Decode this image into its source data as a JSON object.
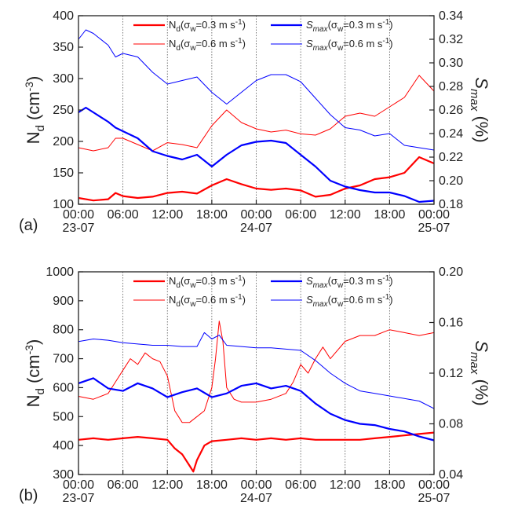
{
  "chart_data": [
    {
      "type": "line",
      "panel_label": "(a)",
      "ylabel_left": "N_d (cm^-3)",
      "ylabel_right": "S_max (%)",
      "ylim_left": [
        100,
        400
      ],
      "ylim_right": [
        0.18,
        0.34
      ],
      "yticks_left": [
        100,
        150,
        200,
        250,
        300,
        350,
        400
      ],
      "yticks_right": [
        0.18,
        0.2,
        0.22,
        0.24,
        0.26,
        0.28,
        0.3,
        0.32,
        0.34
      ],
      "xlim_hours": [
        0,
        48
      ],
      "xticks": [
        {
          "label": "00:00",
          "date": "23-07"
        },
        {
          "label": "06:00",
          "date": ""
        },
        {
          "label": "12:00",
          "date": ""
        },
        {
          "label": "18:00",
          "date": ""
        },
        {
          "label": "00:00",
          "date": "24-07"
        },
        {
          "label": "06:00",
          "date": ""
        },
        {
          "label": "12:00",
          "date": ""
        },
        {
          "label": "18:00",
          "date": ""
        },
        {
          "label": "00:00",
          "date": "25-07"
        }
      ],
      "grid": "vertical",
      "legend": "top",
      "series": [
        {
          "name": "N_d (σw=0.3 m s-1)",
          "axis": "left",
          "color": "#ff0000",
          "width": 2.2,
          "x": [
            0,
            2,
            4,
            5,
            6,
            8,
            10,
            12,
            14,
            16,
            18,
            20,
            22,
            24,
            26,
            28,
            30,
            32,
            34,
            36,
            38,
            40,
            42,
            44,
            46,
            48
          ],
          "y": [
            110,
            106,
            108,
            118,
            113,
            110,
            112,
            118,
            120,
            117,
            130,
            140,
            132,
            125,
            123,
            125,
            122,
            112,
            115,
            125,
            130,
            140,
            143,
            150,
            175,
            165
          ]
        },
        {
          "name": "N_d (σw=0.6 m s-1)",
          "axis": "left",
          "color": "#ff0000",
          "width": 1,
          "x": [
            0,
            2,
            4,
            5,
            6,
            8,
            10,
            12,
            14,
            16,
            18,
            20,
            22,
            24,
            26,
            28,
            30,
            32,
            34,
            36,
            38,
            40,
            42,
            44,
            46,
            48
          ],
          "y": [
            190,
            185,
            190,
            205,
            205,
            195,
            185,
            198,
            195,
            190,
            225,
            250,
            230,
            220,
            215,
            218,
            212,
            210,
            220,
            240,
            245,
            240,
            255,
            270,
            305,
            280
          ]
        },
        {
          "name": "S_max (σw=0.3 m s-1)",
          "axis": "right",
          "color": "#0000ff",
          "width": 2.2,
          "x": [
            0,
            1,
            2,
            4,
            5,
            6,
            8,
            10,
            12,
            14,
            16,
            18,
            20,
            22,
            24,
            26,
            28,
            30,
            32,
            34,
            36,
            38,
            40,
            42,
            44,
            46,
            48
          ],
          "y": [
            0.258,
            0.262,
            0.258,
            0.25,
            0.245,
            0.242,
            0.236,
            0.225,
            0.221,
            0.218,
            0.222,
            0.212,
            0.222,
            0.23,
            0.233,
            0.234,
            0.232,
            0.222,
            0.212,
            0.2,
            0.195,
            0.192,
            0.19,
            0.19,
            0.187,
            0.182,
            0.183
          ]
        },
        {
          "name": "S_max (σw=0.6 m s-1)",
          "axis": "right",
          "color": "#0000ff",
          "width": 1,
          "x": [
            0,
            1,
            2,
            4,
            5,
            6,
            8,
            10,
            12,
            14,
            16,
            18,
            20,
            22,
            24,
            26,
            28,
            30,
            32,
            34,
            36,
            38,
            40,
            42,
            44,
            46,
            48
          ],
          "y": [
            0.32,
            0.328,
            0.325,
            0.315,
            0.305,
            0.308,
            0.305,
            0.292,
            0.282,
            0.285,
            0.288,
            0.275,
            0.265,
            0.275,
            0.285,
            0.29,
            0.29,
            0.284,
            0.27,
            0.256,
            0.245,
            0.243,
            0.238,
            0.24,
            0.23,
            0.228,
            0.226
          ]
        }
      ],
      "legend_entries": [
        {
          "prefix": "N",
          "sub": "d",
          "sigma": "(σ",
          "sigmasub": "w",
          "rest": "=0.3 m s",
          "sup": "-1",
          "close": ")",
          "series": 0
        },
        {
          "prefix": "S",
          "sub": "max",
          "sigma": "(σ",
          "sigmasub": "w",
          "rest": "=0.3 m s",
          "sup": "-1",
          "close": ")",
          "series": 2
        },
        {
          "prefix": "N",
          "sub": "d",
          "sigma": "(σ",
          "sigmasub": "w",
          "rest": "=0.6 m s",
          "sup": "-1",
          "close": ")",
          "series": 1
        },
        {
          "prefix": "S",
          "sub": "max",
          "sigma": "(σ",
          "sigmasub": "w",
          "rest": "=0.6 m s",
          "sup": "-1",
          "close": ")",
          "series": 3
        }
      ]
    },
    {
      "type": "line",
      "panel_label": "(b)",
      "ylabel_left": "N_d (cm^-3)",
      "ylabel_right": "S_max (%)",
      "ylim_left": [
        300,
        1000
      ],
      "ylim_right": [
        0.04,
        0.2
      ],
      "yticks_left": [
        300,
        400,
        500,
        600,
        700,
        800,
        900,
        1000
      ],
      "yticks_right": [
        0.04,
        0.08,
        0.12,
        0.16,
        0.2
      ],
      "xlim_hours": [
        0,
        48
      ],
      "xticks": [
        {
          "label": "00:00",
          "date": "23-07"
        },
        {
          "label": "06:00",
          "date": ""
        },
        {
          "label": "12:00",
          "date": ""
        },
        {
          "label": "18:00",
          "date": ""
        },
        {
          "label": "00:00",
          "date": "24-07"
        },
        {
          "label": "06:00",
          "date": ""
        },
        {
          "label": "12:00",
          "date": ""
        },
        {
          "label": "18:00",
          "date": ""
        },
        {
          "label": "00:00",
          "date": "25-07"
        }
      ],
      "grid": "vertical",
      "legend": "top",
      "series": [
        {
          "name": "N_d (σw=0.3 m s-1)",
          "axis": "left",
          "color": "#ff0000",
          "width": 2.2,
          "x": [
            0,
            2,
            4,
            6,
            8,
            10,
            12,
            13,
            14,
            15,
            15.5,
            16,
            17,
            18,
            20,
            22,
            24,
            26,
            28,
            30,
            32,
            34,
            36,
            38,
            40,
            42,
            44,
            46,
            48
          ],
          "y": [
            420,
            425,
            420,
            425,
            430,
            425,
            420,
            390,
            370,
            330,
            310,
            350,
            400,
            415,
            420,
            425,
            420,
            425,
            420,
            425,
            420,
            420,
            420,
            420,
            425,
            430,
            435,
            440,
            445
          ]
        },
        {
          "name": "N_d (σw=0.6 m s-1)",
          "axis": "left",
          "color": "#ff0000",
          "width": 1,
          "x": [
            0,
            2,
            4,
            5,
            6,
            7,
            8,
            9,
            10,
            11,
            12,
            13,
            14,
            15,
            16,
            17,
            18,
            18.5,
            19,
            19.5,
            20,
            21,
            22,
            24,
            26,
            28,
            29,
            30,
            31,
            32,
            33,
            34,
            36,
            38,
            40,
            42,
            44,
            46,
            48
          ],
          "y": [
            570,
            560,
            580,
            620,
            660,
            700,
            680,
            720,
            700,
            690,
            640,
            520,
            480,
            480,
            500,
            520,
            600,
            700,
            830,
            760,
            600,
            560,
            550,
            550,
            560,
            580,
            620,
            680,
            650,
            700,
            740,
            700,
            760,
            780,
            780,
            800,
            790,
            780,
            790
          ]
        },
        {
          "name": "S_max (σw=0.3 m s-1)",
          "axis": "right",
          "color": "#0000ff",
          "width": 2.2,
          "x": [
            0,
            2,
            4,
            6,
            8,
            10,
            12,
            14,
            16,
            18,
            20,
            22,
            24,
            26,
            28,
            30,
            32,
            34,
            36,
            38,
            40,
            42,
            44,
            46,
            48
          ],
          "y": [
            0.112,
            0.116,
            0.108,
            0.106,
            0.112,
            0.108,
            0.101,
            0.105,
            0.108,
            0.101,
            0.104,
            0.11,
            0.112,
            0.108,
            0.11,
            0.106,
            0.096,
            0.088,
            0.083,
            0.08,
            0.079,
            0.076,
            0.074,
            0.07,
            0.067
          ]
        },
        {
          "name": "S_max (σw=0.6 m s-1)",
          "axis": "right",
          "color": "#0000ff",
          "width": 1,
          "x": [
            0,
            2,
            4,
            6,
            8,
            10,
            12,
            14,
            16,
            17,
            18,
            19,
            20,
            22,
            24,
            26,
            28,
            30,
            32,
            34,
            36,
            38,
            40,
            42,
            44,
            46,
            48
          ],
          "y": [
            0.145,
            0.147,
            0.146,
            0.144,
            0.143,
            0.142,
            0.142,
            0.141,
            0.141,
            0.152,
            0.147,
            0.15,
            0.142,
            0.141,
            0.14,
            0.14,
            0.139,
            0.138,
            0.13,
            0.12,
            0.112,
            0.106,
            0.104,
            0.102,
            0.1,
            0.098,
            0.092
          ]
        }
      ],
      "legend_entries": [
        {
          "prefix": "N",
          "sub": "d",
          "sigma": "(σ",
          "sigmasub": "w",
          "rest": "=0.3 m s",
          "sup": "-1",
          "close": ")",
          "series": 0
        },
        {
          "prefix": "S",
          "sub": "max",
          "sigma": "(σ",
          "sigmasub": "w",
          "rest": "=0.3 m s",
          "sup": "-1",
          "close": ")",
          "series": 2
        },
        {
          "prefix": "N",
          "sub": "d",
          "sigma": "(σ",
          "sigmasub": "w",
          "rest": "=0.6 m s",
          "sup": "-1",
          "close": ")",
          "series": 1
        },
        {
          "prefix": "S",
          "sub": "max",
          "sigma": "(σ",
          "sigmasub": "w",
          "rest": "=0.6 m s",
          "sup": "-1",
          "close": ")",
          "series": 3
        }
      ]
    }
  ]
}
